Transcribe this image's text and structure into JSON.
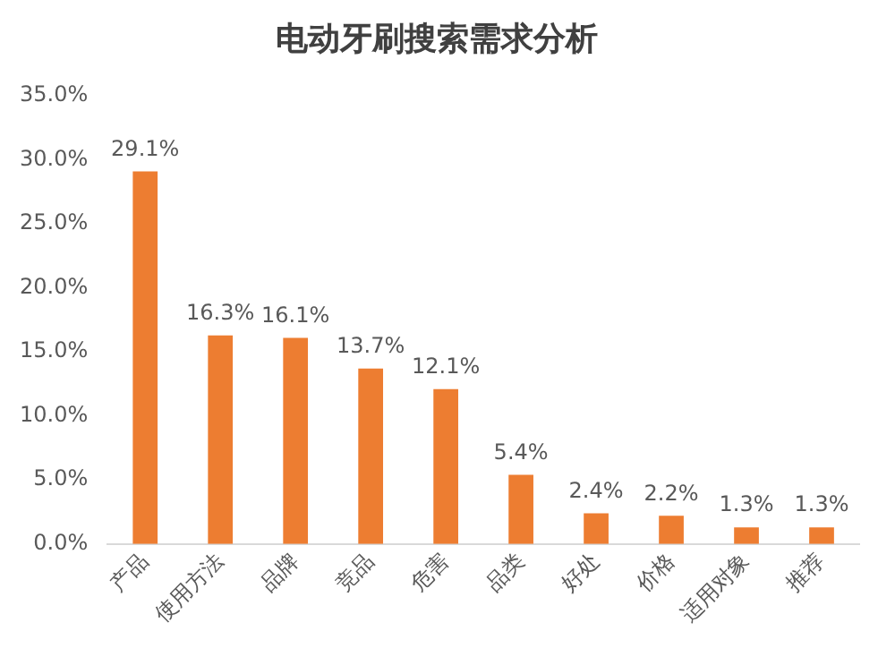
{
  "chart_data": {
    "type": "bar",
    "title": "电动牙刷搜索需求分析",
    "categories": [
      "产品",
      "使用方法",
      "品牌",
      "竞品",
      "危害",
      "品类",
      "好处",
      "价格",
      "适用对象",
      "推荐"
    ],
    "series": [
      {
        "color": "#ed7d31",
        "values": [
          29.1,
          16.3,
          16.1,
          13.7,
          12.1,
          5.4,
          2.4,
          2.2,
          1.3,
          1.3
        ],
        "value_labels": [
          "29.1%",
          "16.3%",
          "16.1%",
          "13.7%",
          "12.1%",
          "5.4%",
          "2.4%",
          "2.2%",
          "1.3%",
          "1.3%"
        ]
      }
    ],
    "ylim": [
      0,
      35
    ],
    "yticks": [
      {
        "value": 0,
        "label": "0.0%"
      },
      {
        "value": 5,
        "label": "5.0%"
      },
      {
        "value": 10,
        "label": "10.0%"
      },
      {
        "value": 15,
        "label": "15.0%"
      },
      {
        "value": 20,
        "label": "20.0%"
      },
      {
        "value": 25,
        "label": "25.0%"
      },
      {
        "value": 30,
        "label": "30.0%"
      },
      {
        "value": 35,
        "label": "35.0%"
      }
    ],
    "grid": false,
    "legend": false
  }
}
